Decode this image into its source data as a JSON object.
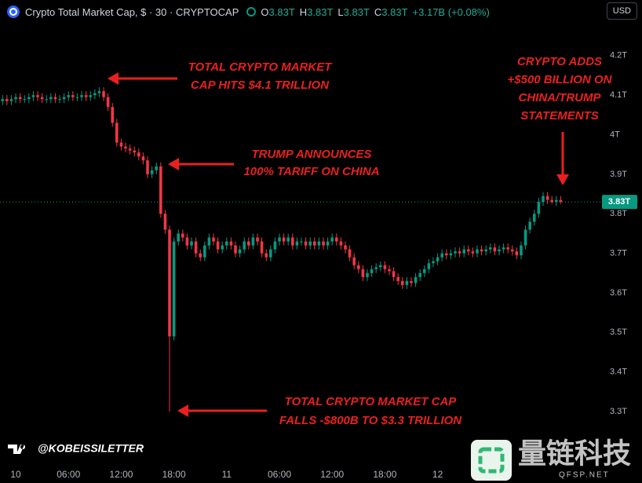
{
  "header": {
    "title": "Crypto Total Market Cap, $ · 30 · CRYPTOCAP",
    "ohlc": [
      {
        "key": "O",
        "value": "3.83T"
      },
      {
        "key": "H",
        "value": "3.83T"
      },
      {
        "key": "L",
        "value": "3.83T"
      },
      {
        "key": "C",
        "value": "3.83T"
      }
    ],
    "change": "+3.17B (+0.08%)",
    "currency": "USD"
  },
  "chart_data": {
    "type": "candlestick",
    "up_color": "#089981",
    "down_color": "#f23645",
    "grid": false,
    "xlim": [
      -1.79,
      66.52
    ],
    "ylim": [
      3.169,
      4.281
    ],
    "xticks": [
      {
        "value": 0,
        "label": "10"
      },
      {
        "value": 6,
        "label": "06:00"
      },
      {
        "value": 12,
        "label": "12:00"
      },
      {
        "value": 18,
        "label": "18:00"
      },
      {
        "value": 24,
        "label": "11"
      },
      {
        "value": 30,
        "label": "06:00"
      },
      {
        "value": 36,
        "label": "12:00"
      },
      {
        "value": 42,
        "label": "18:00"
      },
      {
        "value": 48,
        "label": "12"
      }
    ],
    "yticks": [
      {
        "value": 4.2,
        "label": "4.2T"
      },
      {
        "value": 4.1,
        "label": "4.1T"
      },
      {
        "value": 4,
        "label": "4T"
      },
      {
        "value": 3.9,
        "label": "3.9T"
      },
      {
        "value": 3.8,
        "label": "3.8T"
      },
      {
        "value": 3.7,
        "label": "3.7T"
      },
      {
        "value": 3.6,
        "label": "3.6T"
      },
      {
        "value": 3.5,
        "label": "3.5T"
      },
      {
        "value": 3.4,
        "label": "3.4T"
      },
      {
        "value": 3.3,
        "label": "3.3T"
      }
    ],
    "last_price": {
      "value": 3.83,
      "label": "3.83T"
    },
    "x": [
      -1.5,
      -1,
      -0.5,
      0,
      0.5,
      1,
      1.5,
      2,
      2.5,
      3,
      3.5,
      4,
      4.5,
      5,
      5.5,
      6,
      6.5,
      7,
      7.5,
      8,
      8.5,
      9,
      9.5,
      10,
      10.5,
      11,
      11.5,
      12,
      12.5,
      13,
      13.5,
      14,
      14.5,
      15,
      15.5,
      16,
      16.5,
      17,
      17.5,
      18,
      18.5,
      19,
      19.5,
      20,
      20.5,
      21,
      21.5,
      22,
      22.5,
      23,
      23.5,
      24,
      24.5,
      25,
      25.5,
      26,
      26.5,
      27,
      27.5,
      28,
      28.5,
      29,
      29.5,
      30,
      30.5,
      31,
      31.5,
      32,
      32.5,
      33,
      33.5,
      34,
      34.5,
      35,
      35.5,
      36,
      36.5,
      37,
      37.5,
      38,
      38.5,
      39,
      39.5,
      40,
      40.5,
      41,
      41.5,
      42,
      42.5,
      43,
      43.5,
      44,
      44.5,
      45,
      45.5,
      46,
      46.5,
      47,
      47.5,
      48,
      48.5,
      49,
      49.5,
      50,
      50.5,
      51,
      51.5,
      52,
      52.5,
      53,
      53.5,
      54,
      54.5,
      55,
      55.5,
      56,
      56.5,
      57,
      57.5,
      58,
      58.5,
      59,
      59.5,
      60,
      60.5,
      61,
      61.5,
      62
    ],
    "open": [
      4.085,
      4.09,
      4.085,
      4.09,
      4.095,
      4.09,
      4.09,
      4.095,
      4.1,
      4.095,
      4.09,
      4.09,
      4.095,
      4.09,
      4.09,
      4.095,
      4.1,
      4.095,
      4.095,
      4.1,
      4.095,
      4.1,
      4.105,
      4.11,
      4.095,
      4.07,
      4.03,
      3.98,
      3.97,
      3.965,
      3.96,
      3.955,
      3.945,
      3.935,
      3.9,
      3.91,
      3.92,
      3.8,
      3.76,
      3.49,
      3.73,
      3.75,
      3.74,
      3.72,
      3.73,
      3.7,
      3.69,
      3.72,
      3.74,
      3.73,
      3.71,
      3.72,
      3.73,
      3.72,
      3.7,
      3.71,
      3.73,
      3.72,
      3.74,
      3.73,
      3.7,
      3.69,
      3.71,
      3.73,
      3.74,
      3.73,
      3.74,
      3.72,
      3.73,
      3.73,
      3.72,
      3.73,
      3.72,
      3.73,
      3.72,
      3.73,
      3.74,
      3.73,
      3.72,
      3.71,
      3.69,
      3.67,
      3.66,
      3.64,
      3.65,
      3.66,
      3.665,
      3.67,
      3.66,
      3.655,
      3.64,
      3.63,
      3.62,
      3.63,
      3.625,
      3.64,
      3.65,
      3.66,
      3.675,
      3.68,
      3.69,
      3.7,
      3.695,
      3.7,
      3.705,
      3.7,
      3.71,
      3.705,
      3.7,
      3.71,
      3.705,
      3.71,
      3.715,
      3.705,
      3.71,
      3.715,
      3.71,
      3.705,
      3.695,
      3.72,
      3.76,
      3.78,
      3.8,
      3.83,
      3.845,
      3.835,
      3.83,
      3.835
    ],
    "high": [
      4.1,
      4.1,
      4.1,
      4.105,
      4.105,
      4.1,
      4.105,
      4.11,
      4.11,
      4.105,
      4.1,
      4.105,
      4.105,
      4.1,
      4.105,
      4.11,
      4.11,
      4.105,
      4.11,
      4.11,
      4.11,
      4.115,
      4.12,
      4.12,
      4.105,
      4.08,
      4.04,
      3.99,
      3.98,
      3.975,
      3.97,
      3.965,
      3.955,
      3.945,
      3.92,
      3.93,
      3.93,
      3.81,
      3.77,
      3.74,
      3.76,
      3.76,
      3.75,
      3.74,
      3.74,
      3.71,
      3.73,
      3.75,
      3.75,
      3.74,
      3.73,
      3.74,
      3.74,
      3.73,
      3.72,
      3.74,
      3.74,
      3.75,
      3.75,
      3.74,
      3.71,
      3.72,
      3.74,
      3.75,
      3.75,
      3.75,
      3.75,
      3.74,
      3.74,
      3.74,
      3.74,
      3.74,
      3.74,
      3.74,
      3.74,
      3.75,
      3.75,
      3.74,
      3.73,
      3.72,
      3.7,
      3.68,
      3.67,
      3.66,
      3.67,
      3.675,
      3.68,
      3.68,
      3.67,
      3.665,
      3.65,
      3.64,
      3.64,
      3.64,
      3.65,
      3.66,
      3.67,
      3.685,
      3.69,
      3.7,
      3.71,
      3.71,
      3.71,
      3.715,
      3.715,
      3.72,
      3.72,
      3.715,
      3.72,
      3.72,
      3.72,
      3.725,
      3.725,
      3.72,
      3.725,
      3.725,
      3.72,
      3.715,
      3.73,
      3.77,
      3.79,
      3.81,
      3.84,
      3.855,
      3.855,
      3.845,
      3.845,
      3.845
    ],
    "low": [
      4.075,
      4.075,
      4.075,
      4.08,
      4.08,
      4.08,
      4.08,
      4.085,
      4.085,
      4.08,
      4.08,
      4.08,
      4.08,
      4.08,
      4.08,
      4.085,
      4.085,
      4.085,
      4.085,
      4.085,
      4.085,
      4.09,
      4.095,
      4.085,
      4.06,
      4.02,
      3.97,
      3.96,
      3.955,
      3.95,
      3.945,
      3.935,
      3.925,
      3.89,
      3.89,
      3.9,
      3.79,
      3.75,
      3.3,
      3.48,
      3.72,
      3.73,
      3.71,
      3.71,
      3.69,
      3.68,
      3.68,
      3.71,
      3.72,
      3.7,
      3.7,
      3.71,
      3.71,
      3.69,
      3.69,
      3.7,
      3.71,
      3.71,
      3.72,
      3.69,
      3.68,
      3.68,
      3.7,
      3.72,
      3.72,
      3.72,
      3.71,
      3.71,
      3.72,
      3.71,
      3.71,
      3.71,
      3.71,
      3.71,
      3.71,
      3.72,
      3.72,
      3.71,
      3.7,
      3.68,
      3.66,
      3.65,
      3.63,
      3.63,
      3.64,
      3.65,
      3.655,
      3.65,
      3.645,
      3.63,
      3.62,
      3.61,
      3.61,
      3.615,
      3.615,
      3.63,
      3.64,
      3.65,
      3.665,
      3.67,
      3.68,
      3.685,
      3.685,
      3.69,
      3.69,
      3.69,
      3.695,
      3.69,
      3.69,
      3.695,
      3.695,
      3.7,
      3.695,
      3.695,
      3.7,
      3.7,
      3.695,
      3.685,
      3.685,
      3.71,
      3.75,
      3.77,
      3.79,
      3.82,
      3.825,
      3.825,
      3.82,
      3.825
    ],
    "close": [
      4.09,
      4.085,
      4.09,
      4.095,
      4.09,
      4.09,
      4.095,
      4.1,
      4.095,
      4.09,
      4.09,
      4.095,
      4.09,
      4.09,
      4.095,
      4.1,
      4.095,
      4.095,
      4.1,
      4.095,
      4.1,
      4.105,
      4.11,
      4.095,
      4.07,
      4.03,
      3.98,
      3.97,
      3.965,
      3.96,
      3.955,
      3.945,
      3.935,
      3.9,
      3.91,
      3.92,
      3.8,
      3.76,
      3.49,
      3.73,
      3.75,
      3.74,
      3.72,
      3.73,
      3.7,
      3.69,
      3.72,
      3.74,
      3.73,
      3.71,
      3.72,
      3.73,
      3.72,
      3.7,
      3.71,
      3.73,
      3.72,
      3.74,
      3.73,
      3.7,
      3.69,
      3.71,
      3.73,
      3.74,
      3.73,
      3.74,
      3.72,
      3.73,
      3.73,
      3.72,
      3.73,
      3.72,
      3.73,
      3.72,
      3.73,
      3.74,
      3.73,
      3.72,
      3.71,
      3.69,
      3.67,
      3.66,
      3.64,
      3.65,
      3.66,
      3.665,
      3.67,
      3.66,
      3.655,
      3.64,
      3.63,
      3.62,
      3.63,
      3.625,
      3.64,
      3.65,
      3.66,
      3.675,
      3.68,
      3.69,
      3.7,
      3.695,
      3.7,
      3.705,
      3.7,
      3.71,
      3.705,
      3.7,
      3.71,
      3.705,
      3.71,
      3.715,
      3.705,
      3.71,
      3.715,
      3.71,
      3.705,
      3.695,
      3.72,
      3.76,
      3.78,
      3.8,
      3.83,
      3.845,
      3.835,
      3.83,
      3.835,
      3.83
    ],
    "annotation_color": "#e8211f",
    "annotations": [
      [
        "TOTAL CRYPTO MARKET",
        "CAP HITS $4.1 TRILLION"
      ],
      [
        "TRUMP ANNOUNCES",
        "100% TARIFF ON CHINA"
      ],
      [
        "CRYPTO ADDS",
        "+$500 BILLION ON",
        "CHINA/TRUMP",
        "STATEMENTS"
      ],
      [
        "TOTAL CRYPTO MARKET CAP",
        "FALLS -$800B TO $3.3 TRILLION"
      ]
    ]
  },
  "watermarks": {
    "handle": "@KOBEISSILETTER",
    "brand": "量链科技",
    "site": "QFSP.NET"
  }
}
